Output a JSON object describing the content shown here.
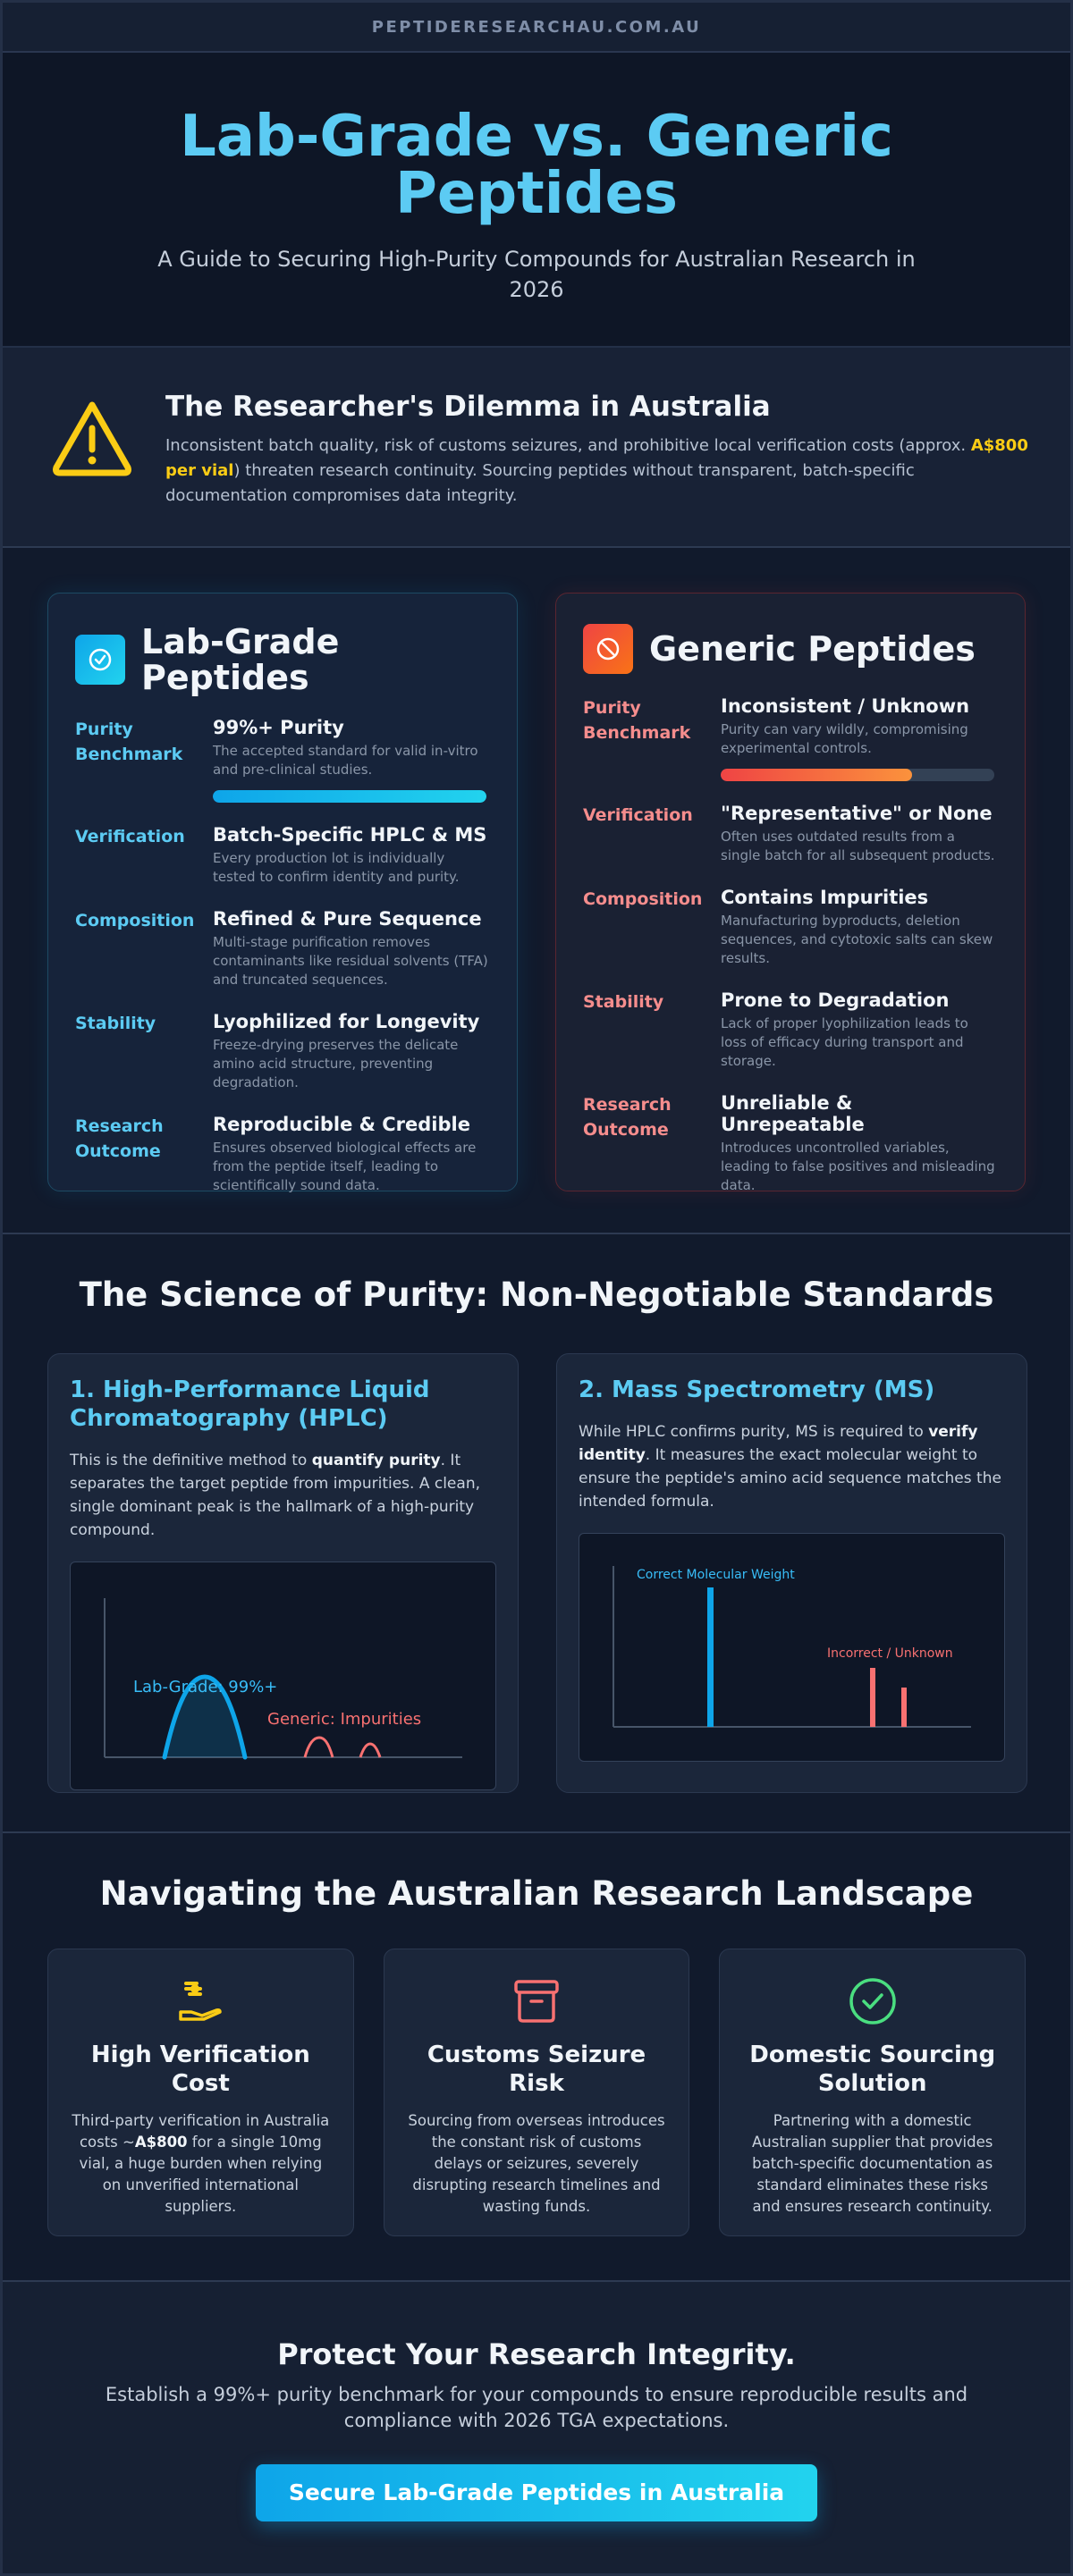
{
  "site": {
    "domain": "PEPTIDERESEARCHAU.COM.AU"
  },
  "hero": {
    "title": "Lab-Grade vs. Generic Peptides",
    "subtitle": "A Guide to Securing High-Purity Compounds for Australian Research in 2026"
  },
  "dilemma": {
    "icon": "warning-triangle-icon",
    "title": "The Researcher's Dilemma in Australia",
    "text_before": "Inconsistent batch quality, risk of customs seizures, and prohibitive local verification costs (approx. ",
    "highlight": "A$800 per vial",
    "text_after": ") threaten research continuity. Sourcing peptides without transparent, batch-specific documentation compromises data integrity.",
    "highlight_color": "#facc15"
  },
  "comparison": {
    "lab": {
      "icon": "check-circle-icon",
      "title": "Lab-Grade Peptides",
      "accent": "#5ccbf3",
      "purity_bar": 1.0,
      "rows": [
        {
          "label": "Purity Benchmark",
          "heading": "99%+ Purity",
          "desc": "The accepted standard for valid in-vitro and pre-clinical studies."
        },
        {
          "label": "Verification",
          "heading": "Batch-Specific HPLC & MS",
          "desc": "Every production lot is individually tested to confirm identity and purity."
        },
        {
          "label": "Composition",
          "heading": "Refined & Pure Sequence",
          "desc": "Multi-stage purification removes contaminants like residual solvents (TFA) and truncated sequences."
        },
        {
          "label": "Stability",
          "heading": "Lyophilized for Longevity",
          "desc": "Freeze-drying preserves the delicate amino acid structure, preventing degradation."
        },
        {
          "label": "Research Outcome",
          "heading": "Reproducible & Credible",
          "desc": "Ensures observed biological effects are from the peptide itself, leading to scientifically sound data."
        }
      ]
    },
    "generic": {
      "icon": "prohibited-icon",
      "title": "Generic Peptides",
      "accent": "#f58d8d",
      "purity_bar": 0.7,
      "rows": [
        {
          "label": "Purity Benchmark",
          "heading": "Inconsistent / Unknown",
          "desc": "Purity can vary wildly, compromising experimental controls."
        },
        {
          "label": "Verification",
          "heading": "\"Representative\" or None",
          "desc": "Often uses outdated results from a single batch for all subsequent products."
        },
        {
          "label": "Composition",
          "heading": "Contains Impurities",
          "desc": "Manufacturing byproducts, deletion sequences, and cytotoxic salts can skew results."
        },
        {
          "label": "Stability",
          "heading": "Prone to Degradation",
          "desc": "Lack of proper lyophilization leads to loss of efficacy during transport and storage."
        },
        {
          "label": "Research Outcome",
          "heading": "Unreliable & Unrepeatable",
          "desc": "Introduces uncontrolled variables, leading to false positives and misleading data."
        }
      ]
    }
  },
  "science": {
    "title": "The Science of Purity: Non-Negotiable Standards",
    "hplc": {
      "title": "1. High-Performance Liquid Chromatography (HPLC)",
      "text_before": "This is the definitive method to ",
      "bold": "quantify purity",
      "text_after": ". It separates the target peptide from impurities. A clean, single dominant peak is the hallmark of a high-purity compound.",
      "label_lab": "Lab-Grade: 99%+",
      "label_generic": "Generic: Impurities"
    },
    "ms": {
      "title": "2. Mass Spectrometry (MS)",
      "text_before": "While HPLC confirms purity, MS is required to ",
      "bold": "verify identity",
      "text_after": ". It measures the exact molecular weight to ensure the peptide's amino acid sequence matches the intended formula.",
      "label_correct": "Correct Molecular Weight",
      "label_incorrect": "Incorrect / Unknown"
    }
  },
  "landscape": {
    "title": "Navigating the Australian Research Landscape",
    "cards": [
      {
        "icon": "money-hand-icon",
        "icon_color": "#facc15",
        "title": "High Verification Cost",
        "text_before": "Third-party verification in Australia costs ~",
        "bold": "A$800",
        "text_after": " for a single 10mg vial, a huge burden when relying on unverified international suppliers."
      },
      {
        "icon": "archive-box-icon",
        "icon_color": "#f87171",
        "title": "Customs Seizure Risk",
        "text_before": "Sourcing from overseas introduces the constant risk of customs delays or seizures, severely disrupting research timelines and wasting funds.",
        "bold": "",
        "text_after": ""
      },
      {
        "icon": "check-circle-icon",
        "icon_color": "#4ade80",
        "title": "Domestic Sourcing Solution",
        "text_before": "Partnering with a domestic Australian supplier that provides batch-specific documentation as standard eliminates these risks and ensures research continuity.",
        "bold": "",
        "text_after": ""
      }
    ]
  },
  "cta": {
    "title": "Protect Your Research Integrity.",
    "text": "Establish a 99%+ purity benchmark for your compounds to ensure reproducible results and compliance with 2026 TGA expectations.",
    "button": "Secure Lab-Grade Peptides in Australia"
  }
}
